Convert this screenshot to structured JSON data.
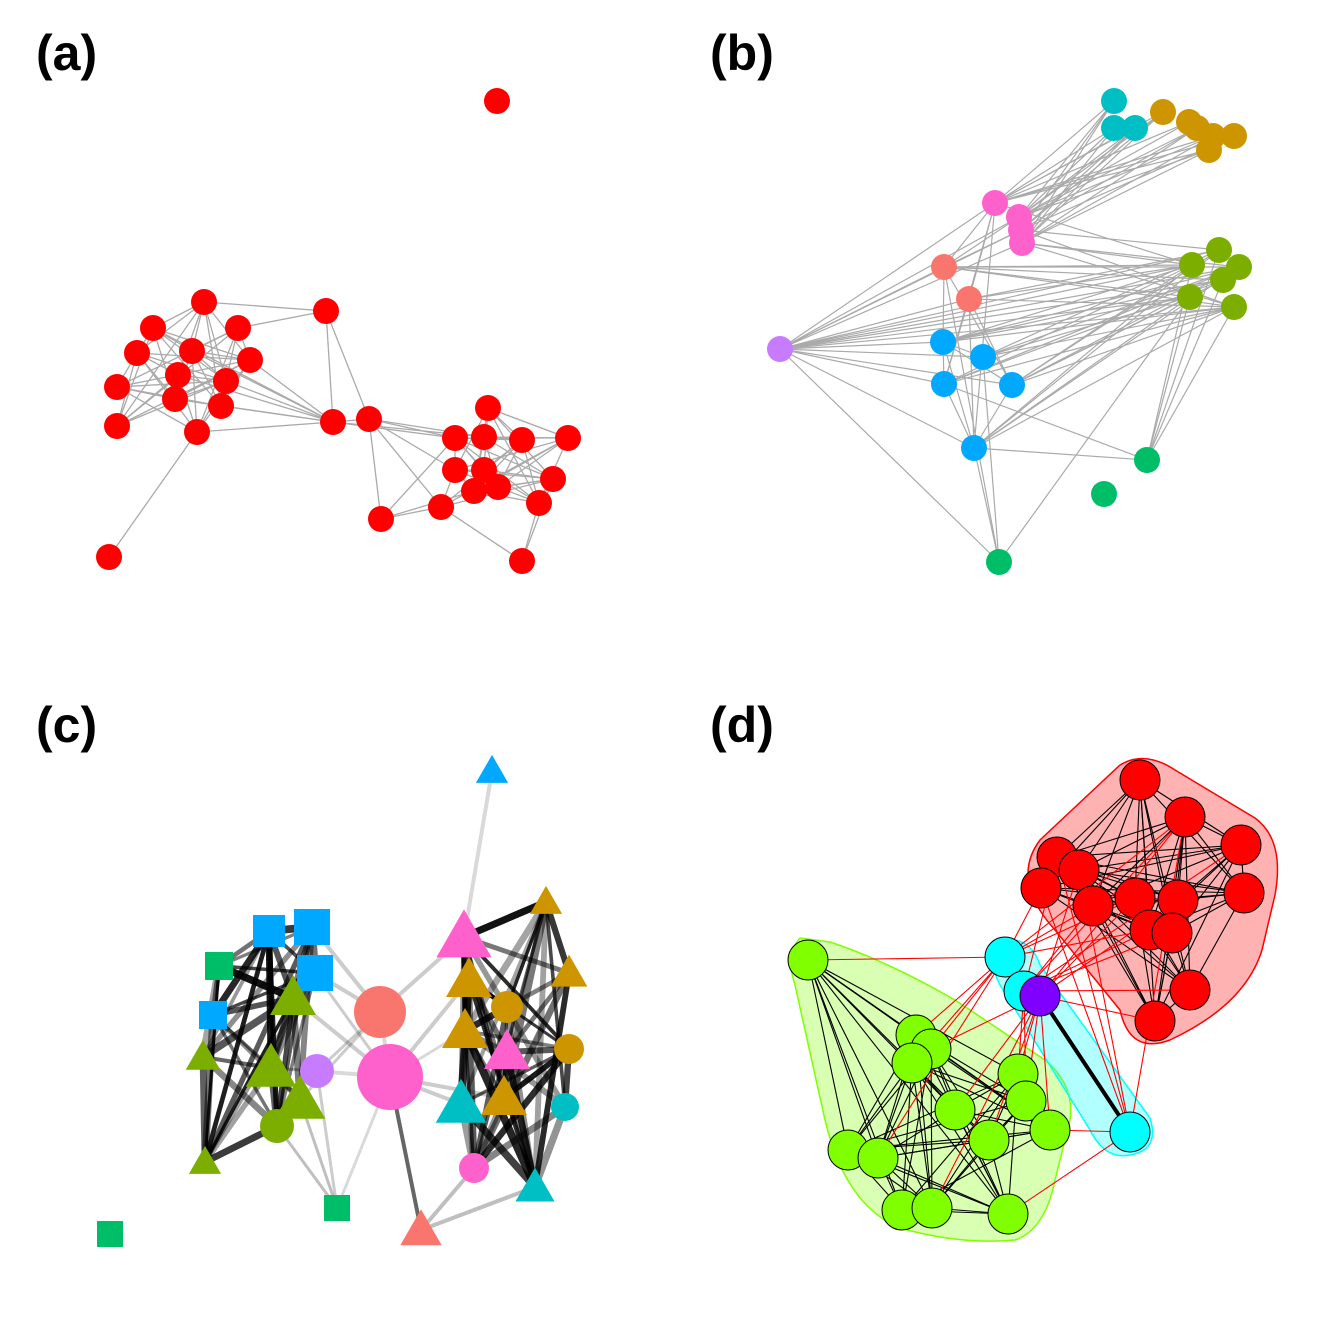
{
  "panels": [
    {
      "id": "a",
      "label": "(a)"
    },
    {
      "id": "b",
      "label": "(b)"
    },
    {
      "id": "c",
      "label": "(c)"
    },
    {
      "id": "d",
      "label": "(d)"
    }
  ],
  "colors": {
    "red": "#ff0000",
    "teal": "#00bfc4",
    "gold": "#cd9600",
    "pink": "#ff61cc",
    "salmon": "#f8766d",
    "olive": "#7cae00",
    "blue": "#00a9ff",
    "purple": "#c77cff",
    "green": "#00be67",
    "lime": "#80ff00",
    "cyan": "#00ffff",
    "violet": "#8000ff",
    "edge_gray": "#aaaaaa",
    "edge_black": "#000000",
    "edge_red": "#ff0000"
  }
}
